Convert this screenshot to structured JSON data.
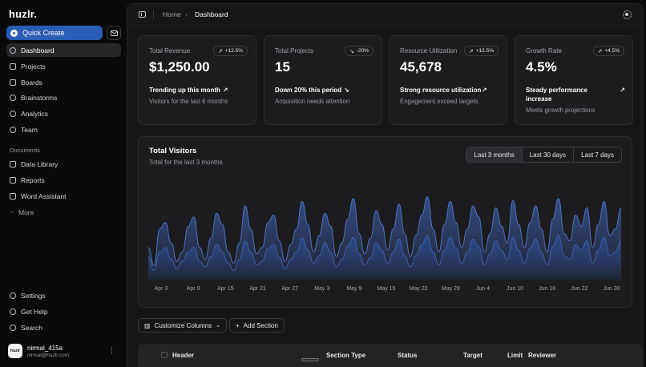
{
  "app": {
    "logo": "huzlr."
  },
  "sidebar": {
    "quick_create": "Quick Create",
    "items": [
      {
        "label": "Dashboard",
        "icon": "dashboard-icon",
        "active": true
      },
      {
        "label": "Projects",
        "icon": "folder-icon"
      },
      {
        "label": "Boards",
        "icon": "boards-icon"
      },
      {
        "label": "Brainstorms",
        "icon": "lightbulb-icon"
      },
      {
        "label": "Analytics",
        "icon": "analytics-icon"
      },
      {
        "label": "Team",
        "icon": "team-icon"
      }
    ],
    "documents_label": "Documents",
    "documents": [
      {
        "label": "Data Library",
        "icon": "database-icon"
      },
      {
        "label": "Reports",
        "icon": "reports-icon"
      },
      {
        "label": "Word Assistant",
        "icon": "document-icon"
      },
      {
        "label": "More",
        "icon": "more-icon"
      }
    ],
    "footer": [
      {
        "label": "Settings",
        "icon": "gear-icon"
      },
      {
        "label": "Get Help",
        "icon": "help-icon"
      },
      {
        "label": "Search",
        "icon": "search-icon"
      }
    ],
    "user": {
      "name": "nirmal_415a",
      "email": "nirmal@huzlr.com",
      "avatar_text": "huzlr"
    }
  },
  "header": {
    "breadcrumb": [
      "Home",
      "Dashboard"
    ],
    "separator": "›"
  },
  "cards": [
    {
      "title": "Total Revenue",
      "badge": "+12.5%",
      "badge_dir": "up",
      "value": "$1,250.00",
      "line1": "Trending up this month",
      "line2": "Visitors for the last 6 months"
    },
    {
      "title": "Total Projects",
      "badge": "-20%",
      "badge_dir": "down",
      "value": "15",
      "line1": "Down 20% this period",
      "line2": "Acquisition needs attention"
    },
    {
      "title": "Resource Utilization",
      "badge": "+12.5%",
      "badge_dir": "up",
      "value": "45,678",
      "line1": "Strong resource utilization",
      "line2": "Engagement exceed targets"
    },
    {
      "title": "Growth Rate",
      "badge": "+4.5%",
      "badge_dir": "up",
      "value": "4.5%",
      "line1": "Steady performance increase",
      "line2": "Meets growth projections"
    }
  ],
  "visitors": {
    "title": "Total Visitors",
    "subtitle": "Total for the last 3 months",
    "ranges": [
      "Last 3 months",
      "Last 30 days",
      "Last 7 days"
    ],
    "active_range": "Last 3 months"
  },
  "chart_data": {
    "type": "area",
    "title": "Total Visitors",
    "x_ticks": [
      "Apr 3",
      "Apr 9",
      "Apr 15",
      "Apr 21",
      "Apr 27",
      "May 3",
      "May 9",
      "May 15",
      "May 22",
      "May 29",
      "Jun 4",
      "Jun 10",
      "Jun 16",
      "Jun 22",
      "Jun 30"
    ],
    "series": [
      {
        "values": [
          0.35,
          0.15,
          0.55,
          0.62,
          0.4,
          0.2,
          0.3,
          0.58,
          0.68,
          0.35,
          0.22,
          0.45,
          0.72,
          0.6,
          0.3,
          0.18,
          0.4,
          0.8,
          0.55,
          0.28,
          0.35,
          0.62,
          0.7,
          0.42,
          0.2,
          0.38,
          0.55,
          0.85,
          0.6,
          0.3,
          0.48,
          0.72,
          0.58,
          0.25,
          0.4,
          0.66,
          0.88,
          0.5,
          0.28,
          0.45,
          0.75,
          0.6,
          0.32,
          0.55,
          0.82,
          0.5,
          0.25,
          0.48,
          0.7,
          0.9,
          0.55,
          0.3,
          0.6,
          0.85,
          0.62,
          0.35,
          0.55,
          0.8,
          0.68,
          0.3,
          0.5,
          0.78,
          0.58,
          0.4,
          0.86,
          0.6,
          0.35,
          0.62,
          0.8,
          0.55,
          0.3,
          0.66,
          0.88,
          0.5,
          0.42,
          0.7,
          0.58,
          0.78,
          0.35,
          0.6,
          0.85,
          0.48,
          0.55,
          0.78
        ]
      },
      {
        "values": [
          0.25,
          0.1,
          0.3,
          0.35,
          0.22,
          0.12,
          0.2,
          0.3,
          0.35,
          0.2,
          0.14,
          0.25,
          0.38,
          0.3,
          0.18,
          0.1,
          0.22,
          0.42,
          0.3,
          0.16,
          0.2,
          0.34,
          0.38,
          0.24,
          0.12,
          0.22,
          0.3,
          0.45,
          0.32,
          0.18,
          0.26,
          0.4,
          0.3,
          0.14,
          0.22,
          0.36,
          0.46,
          0.28,
          0.16,
          0.24,
          0.4,
          0.32,
          0.18,
          0.3,
          0.44,
          0.26,
          0.14,
          0.26,
          0.38,
          0.48,
          0.3,
          0.16,
          0.32,
          0.46,
          0.34,
          0.18,
          0.3,
          0.44,
          0.36,
          0.16,
          0.28,
          0.42,
          0.32,
          0.22,
          0.46,
          0.32,
          0.18,
          0.34,
          0.44,
          0.3,
          0.16,
          0.36,
          0.48,
          0.26,
          0.22,
          0.38,
          0.32,
          0.42,
          0.18,
          0.32,
          0.46,
          0.26,
          0.3,
          0.42
        ]
      }
    ],
    "colors": [
      "#3b5ea8",
      "#2b4a8a"
    ],
    "grid": false,
    "legend": "none"
  },
  "toolbar": {
    "customize": "Customize Columns",
    "add_section": "Add Section"
  },
  "table": {
    "columns": [
      "Header",
      "Section Type",
      "Status",
      "Target",
      "Limit",
      "Reviewer"
    ]
  }
}
